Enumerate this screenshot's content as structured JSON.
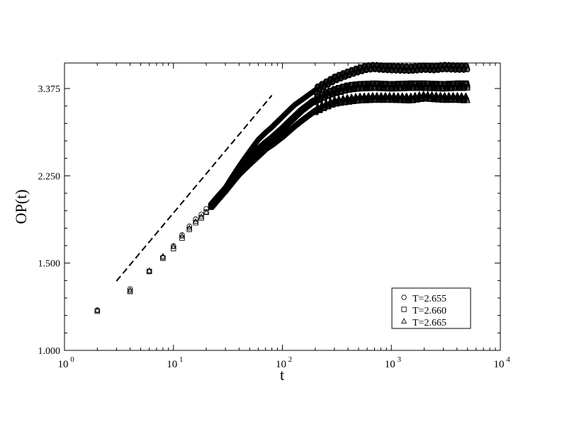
{
  "chart_data": {
    "type": "scatter",
    "title": "",
    "xlabel": "t",
    "ylabel": "OP(t)",
    "x_scale": "log",
    "y_scale": "log",
    "xlim": [
      1,
      10000
    ],
    "ylim": [
      1.0,
      3.8
    ],
    "x_ticks": [
      {
        "value": 1,
        "base": "10",
        "exp": "0"
      },
      {
        "value": 10,
        "base": "10",
        "exp": "1"
      },
      {
        "value": 100,
        "base": "10",
        "exp": "2"
      },
      {
        "value": 1000,
        "base": "10",
        "exp": "3"
      },
      {
        "value": 10000,
        "base": "10",
        "exp": "4"
      }
    ],
    "y_ticks": [
      {
        "value": 1.0,
        "label": "1.000"
      },
      {
        "value": 1.5,
        "label": "1.500"
      },
      {
        "value": 2.25,
        "label": "2.250"
      },
      {
        "value": 3.375,
        "label": "3.375"
      }
    ],
    "legend_position": "bottom-right",
    "series": [
      {
        "name": "T=2.655",
        "marker": "circle",
        "early": [
          [
            2,
            1.205
          ],
          [
            4,
            1.33
          ],
          [
            6,
            1.443
          ],
          [
            8,
            1.54
          ],
          [
            10,
            1.625
          ],
          [
            12,
            1.71
          ],
          [
            14,
            1.78
          ],
          [
            16,
            1.84
          ],
          [
            18,
            1.88
          ],
          [
            20,
            1.93
          ]
        ],
        "curve": [
          [
            22,
            1.97
          ],
          [
            30,
            2.13
          ],
          [
            40,
            2.35
          ],
          [
            50,
            2.52
          ],
          [
            60,
            2.66
          ],
          [
            70,
            2.75
          ],
          [
            80,
            2.82
          ],
          [
            100,
            2.96
          ],
          [
            130,
            3.13
          ],
          [
            150,
            3.2
          ],
          [
            200,
            3.35
          ],
          [
            250,
            3.45
          ],
          [
            300,
            3.53
          ],
          [
            400,
            3.62
          ],
          [
            500,
            3.68
          ],
          [
            600,
            3.72
          ],
          [
            700,
            3.73
          ],
          [
            800,
            3.72
          ],
          [
            1000,
            3.71
          ],
          [
            1500,
            3.7
          ],
          [
            2000,
            3.72
          ],
          [
            2500,
            3.71
          ],
          [
            3000,
            3.73
          ],
          [
            4000,
            3.72
          ],
          [
            5000,
            3.72
          ]
        ]
      },
      {
        "name": "T=2.660",
        "marker": "square",
        "early": [
          [
            2,
            1.2
          ],
          [
            4,
            1.315
          ],
          [
            6,
            1.443
          ],
          [
            8,
            1.535
          ],
          [
            10,
            1.605
          ],
          [
            12,
            1.685
          ],
          [
            14,
            1.755
          ],
          [
            16,
            1.81
          ],
          [
            18,
            1.85
          ],
          [
            20,
            1.9
          ]
        ],
        "curve": [
          [
            22,
            1.95
          ],
          [
            30,
            2.11
          ],
          [
            40,
            2.3
          ],
          [
            50,
            2.43
          ],
          [
            60,
            2.54
          ],
          [
            70,
            2.62
          ],
          [
            80,
            2.68
          ],
          [
            100,
            2.8
          ],
          [
            130,
            2.96
          ],
          [
            150,
            3.05
          ],
          [
            200,
            3.2
          ],
          [
            250,
            3.28
          ],
          [
            300,
            3.33
          ],
          [
            400,
            3.39
          ],
          [
            500,
            3.41
          ],
          [
            700,
            3.42
          ],
          [
            1000,
            3.41
          ],
          [
            1500,
            3.42
          ],
          [
            2000,
            3.42
          ],
          [
            3000,
            3.41
          ],
          [
            4000,
            3.42
          ],
          [
            5000,
            3.42
          ]
        ]
      },
      {
        "name": "T=2.665",
        "marker": "triangle",
        "early": [
          [
            2,
            1.205
          ],
          [
            4,
            1.32
          ],
          [
            6,
            1.448
          ],
          [
            8,
            1.548
          ],
          [
            10,
            1.62
          ],
          [
            12,
            1.7
          ],
          [
            14,
            1.765
          ],
          [
            16,
            1.82
          ],
          [
            18,
            1.86
          ],
          [
            20,
            1.9
          ]
        ],
        "curve": [
          [
            22,
            1.94
          ],
          [
            30,
            2.1
          ],
          [
            40,
            2.27
          ],
          [
            50,
            2.38
          ],
          [
            60,
            2.47
          ],
          [
            70,
            2.55
          ],
          [
            80,
            2.6
          ],
          [
            100,
            2.7
          ],
          [
            130,
            2.84
          ],
          [
            150,
            2.91
          ],
          [
            200,
            3.05
          ],
          [
            250,
            3.12
          ],
          [
            300,
            3.17
          ],
          [
            400,
            3.2
          ],
          [
            500,
            3.22
          ],
          [
            700,
            3.23
          ],
          [
            1000,
            3.23
          ],
          [
            1500,
            3.22
          ],
          [
            2000,
            3.25
          ],
          [
            3000,
            3.23
          ],
          [
            4000,
            3.23
          ],
          [
            5000,
            3.22
          ]
        ]
      }
    ],
    "reference_line": {
      "style": "dashed",
      "points": [
        [
          3,
          1.38
        ],
        [
          80,
          3.27
        ]
      ]
    }
  }
}
